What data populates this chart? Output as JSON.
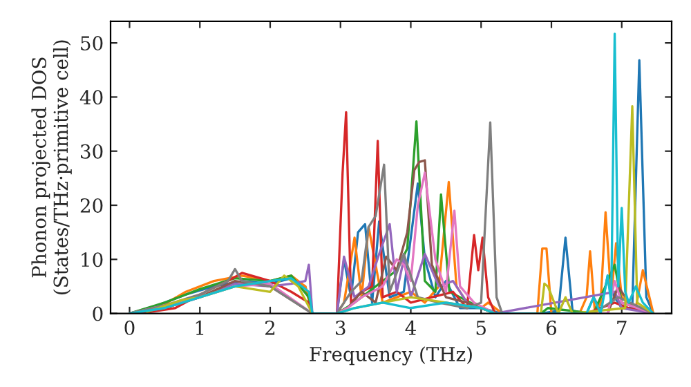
{
  "chart_data": {
    "type": "line",
    "xlabel": "Frequency (THz)",
    "ylabel": "Phonon projected DOS\n(States/THz·primitive cell)",
    "xlim": [
      -0.27,
      7.71
    ],
    "ylim": [
      0,
      54
    ],
    "xticks": [
      0,
      1,
      2,
      3,
      4,
      5,
      6,
      7
    ],
    "yticks": [
      0,
      10,
      20,
      30,
      40,
      50
    ],
    "grid": false,
    "series": [
      {
        "color": "#1f77b4",
        "x": [
          0,
          0.4,
          0.8,
          1.2,
          1.6,
          2.0,
          2.3,
          2.5,
          2.6,
          2.95,
          3.05,
          3.15,
          3.25,
          3.35,
          3.45,
          3.55,
          3.7,
          3.9,
          4.1,
          4.2,
          4.35,
          4.5,
          4.7,
          5.0,
          5.3,
          5.85,
          6.1,
          6.2,
          6.3,
          6.5,
          6.6,
          6.7,
          6.8,
          6.9,
          7.0,
          7.15,
          7.25,
          7.35,
          7.45
        ],
        "values": [
          0,
          1.5,
          3.5,
          5,
          6,
          5.5,
          6.5,
          5,
          0,
          0,
          10,
          3,
          15,
          16.5,
          2,
          17,
          3,
          4,
          24,
          10,
          3,
          6,
          1,
          1,
          0,
          0,
          0.5,
          14,
          0.5,
          0,
          3,
          0.5,
          7,
          3,
          1,
          1,
          46.8,
          3,
          0
        ]
      },
      {
        "color": "#ff7f0e",
        "x": [
          0,
          0.4,
          0.8,
          1.2,
          1.6,
          2.0,
          2.3,
          2.5,
          2.6,
          2.95,
          3.05,
          3.2,
          3.3,
          3.4,
          3.6,
          3.8,
          4.0,
          4.2,
          4.4,
          4.54,
          4.65,
          4.8,
          5.0,
          5.1,
          5.3,
          5.8,
          5.87,
          5.93,
          6.0,
          6.4,
          6.5,
          6.55,
          6.62,
          6.7,
          6.77,
          6.85,
          6.92,
          7.0,
          7.2,
          7.3,
          7.45
        ],
        "values": [
          0,
          1,
          4,
          6,
          7,
          6,
          7,
          5,
          0,
          0,
          2,
          14,
          3,
          16,
          2,
          3,
          4,
          2,
          5,
          24.3,
          5,
          2,
          1,
          2,
          0,
          0,
          12,
          12,
          0,
          0,
          3,
          11.5,
          0,
          2,
          18.7,
          3,
          13,
          3,
          1,
          8,
          0
        ]
      },
      {
        "color": "#2ca02c",
        "x": [
          0,
          0.5,
          1.0,
          1.5,
          2.0,
          2.3,
          2.55,
          2.6,
          2.95,
          3.2,
          3.5,
          3.8,
          3.95,
          4.08,
          4.2,
          4.35,
          4.43,
          4.55,
          4.7,
          5.0,
          5.2,
          5.85,
          5.95,
          6.6,
          6.9,
          7.0,
          7.45
        ],
        "values": [
          0,
          2,
          4.5,
          6.5,
          6,
          7,
          3,
          0,
          0,
          2,
          5,
          8,
          12,
          35.5,
          6,
          4,
          22,
          4,
          3,
          1,
          0,
          0,
          1,
          0,
          9,
          2,
          0
        ]
      },
      {
        "color": "#d62728",
        "x": [
          0.15,
          0.65,
          1.0,
          1.4,
          1.6,
          2.0,
          2.3,
          2.55,
          2.6,
          2.95,
          3.03,
          3.08,
          3.15,
          3.3,
          3.45,
          3.53,
          3.6,
          3.8,
          4.0,
          4.3,
          4.6,
          4.8,
          4.9,
          4.96,
          5.02,
          5.1,
          5.2,
          5.85,
          6.5,
          6.9,
          7.1,
          7.45
        ],
        "values": [
          0,
          1,
          3.5,
          6,
          7.5,
          6,
          4,
          2,
          0,
          0,
          26,
          37.2,
          2,
          4,
          5,
          31.9,
          3,
          4,
          2,
          3,
          4,
          1,
          14.5,
          8,
          14,
          3,
          0,
          0,
          0,
          2,
          1,
          0
        ]
      },
      {
        "color": "#9467bd",
        "x": [
          0,
          0.5,
          1.0,
          1.5,
          2.0,
          2.3,
          2.5,
          2.55,
          2.6,
          2.95,
          3.05,
          3.2,
          3.4,
          3.55,
          3.7,
          3.8,
          3.9,
          4.0,
          4.2,
          4.4,
          4.6,
          4.8,
          5.0,
          5.2,
          6.9,
          7.0,
          7.45
        ],
        "values": [
          0,
          1,
          3,
          5.5,
          5,
          5.5,
          6,
          9,
          0,
          0,
          10.5,
          3,
          5,
          11,
          16.5,
          4,
          10,
          3,
          11,
          5,
          6,
          2,
          1,
          0,
          4,
          1,
          0
        ]
      },
      {
        "color": "#8c564b",
        "x": [
          0,
          0.5,
          1.0,
          1.5,
          2.0,
          2.6,
          2.95,
          3.1,
          3.3,
          3.5,
          3.65,
          3.8,
          3.95,
          4.05,
          4.12,
          4.2,
          4.3,
          4.5,
          4.8,
          5.2,
          6.8,
          6.95,
          7.1,
          7.45
        ],
        "values": [
          0,
          1,
          3,
          6,
          5,
          0,
          0,
          1,
          4,
          2,
          10.5,
          8,
          15,
          26.5,
          28,
          28.3,
          9,
          3,
          2,
          0,
          0,
          5,
          2,
          0
        ]
      },
      {
        "color": "#e377c2",
        "x": [
          0,
          0.5,
          1.0,
          1.5,
          2.0,
          2.6,
          2.95,
          3.1,
          3.3,
          3.6,
          3.8,
          3.9,
          4.0,
          4.1,
          4.2,
          4.35,
          4.5,
          4.62,
          4.7,
          4.9,
          5.2,
          6.8,
          6.9,
          7.0,
          7.45
        ],
        "values": [
          0,
          1.5,
          3,
          5,
          5.5,
          0,
          0,
          1,
          3,
          5,
          10,
          9,
          6,
          20,
          26,
          10,
          4,
          19,
          5,
          2,
          0,
          0,
          6,
          2,
          0
        ]
      },
      {
        "color": "#7f7f7f",
        "x": [
          0,
          0.5,
          1.0,
          1.4,
          1.5,
          1.6,
          2.0,
          2.6,
          2.95,
          3.05,
          3.15,
          3.3,
          3.4,
          3.5,
          3.62,
          3.7,
          3.9,
          4.1,
          4.4,
          4.8,
          5.0,
          5.13,
          5.22,
          5.3,
          6.6,
          6.95,
          7.45
        ],
        "values": [
          0,
          1.5,
          3.5,
          6,
          8.2,
          6,
          5,
          0,
          0,
          2,
          4,
          6,
          16,
          18,
          27.5,
          4,
          11,
          3,
          2,
          1,
          2,
          35.3,
          3,
          0,
          0,
          3,
          0
        ]
      },
      {
        "color": "#bcbd22",
        "x": [
          0.25,
          0.75,
          1.0,
          1.5,
          2.0,
          2.2,
          2.4,
          2.6,
          2.95,
          3.2,
          3.6,
          4.0,
          4.5,
          5.0,
          5.2,
          5.85,
          5.9,
          5.95,
          6.1,
          6.2,
          6.3,
          7.05,
          7.15,
          7.22,
          7.45
        ],
        "values": [
          0.3,
          2.5,
          3,
          5,
          4,
          7,
          5,
          0,
          0,
          1,
          2,
          3,
          2,
          1,
          0,
          0,
          5.5,
          5,
          0,
          3,
          0,
          1,
          38.3,
          2,
          0
        ]
      },
      {
        "color": "#17becf",
        "x": [
          0,
          0.5,
          1.0,
          1.5,
          2.0,
          2.3,
          2.55,
          2.6,
          2.95,
          3.2,
          3.6,
          4.0,
          4.5,
          5.0,
          5.2,
          6.5,
          6.6,
          6.7,
          6.8,
          6.85,
          6.9,
          6.95,
          7.0,
          7.05,
          7.1,
          7.2,
          7.3,
          7.45
        ],
        "values": [
          0,
          1,
          3,
          5,
          6,
          6.5,
          4,
          0,
          0,
          1,
          2,
          1,
          2,
          1,
          0,
          0,
          3,
          0,
          7,
          2,
          51.7,
          5,
          19.5,
          4,
          2,
          5,
          2,
          0
        ]
      }
    ]
  }
}
